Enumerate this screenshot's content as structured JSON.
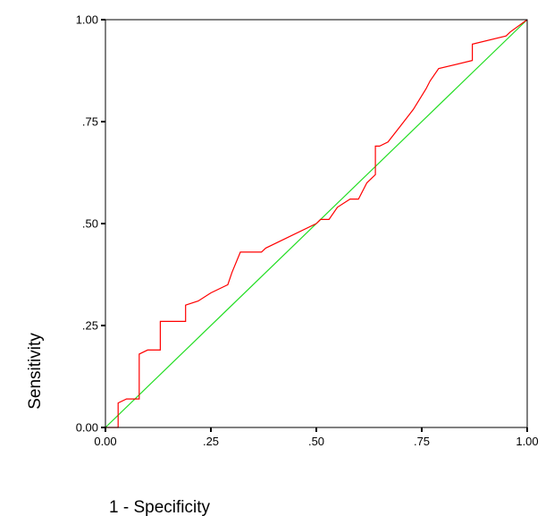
{
  "chart_data": {
    "type": "line",
    "title": "",
    "xlabel": "1 - Specificity",
    "ylabel": "Sensitivity",
    "xlim": [
      0,
      1
    ],
    "ylim": [
      0,
      1
    ],
    "x_ticks": [
      0,
      0.25,
      0.5,
      0.75,
      1
    ],
    "x_tick_labels": [
      "0.00",
      ".25",
      ".50",
      ".75",
      "1.00"
    ],
    "y_ticks": [
      0,
      0.25,
      0.5,
      0.75,
      1
    ],
    "y_tick_labels": [
      "0.00",
      ".25",
      ".50",
      ".75",
      "1.00"
    ],
    "grid": false,
    "legend": "none",
    "series": [
      {
        "color": "#ff0000",
        "x": [
          0,
          0.03,
          0.03,
          0.05,
          0.08,
          0.08,
          0.1,
          0.13,
          0.13,
          0.19,
          0.19,
          0.22,
          0.25,
          0.29,
          0.3,
          0.32,
          0.37,
          0.38,
          0.5,
          0.51,
          0.53,
          0.55,
          0.58,
          0.6,
          0.62,
          0.64,
          0.64,
          0.65,
          0.67,
          0.7,
          0.73,
          0.76,
          0.77,
          0.79,
          0.87,
          0.87,
          0.95,
          0.96,
          1.0
        ],
        "y": [
          0,
          0,
          0.06,
          0.07,
          0.07,
          0.18,
          0.19,
          0.19,
          0.26,
          0.26,
          0.3,
          0.31,
          0.33,
          0.35,
          0.38,
          0.43,
          0.43,
          0.44,
          0.5,
          0.51,
          0.51,
          0.54,
          0.56,
          0.56,
          0.6,
          0.62,
          0.69,
          0.69,
          0.7,
          0.74,
          0.78,
          0.83,
          0.85,
          0.88,
          0.9,
          0.94,
          0.96,
          0.97,
          1.0
        ]
      },
      {
        "color": "#22dd22",
        "x": [
          0,
          1
        ],
        "y": [
          0,
          1
        ]
      }
    ]
  }
}
